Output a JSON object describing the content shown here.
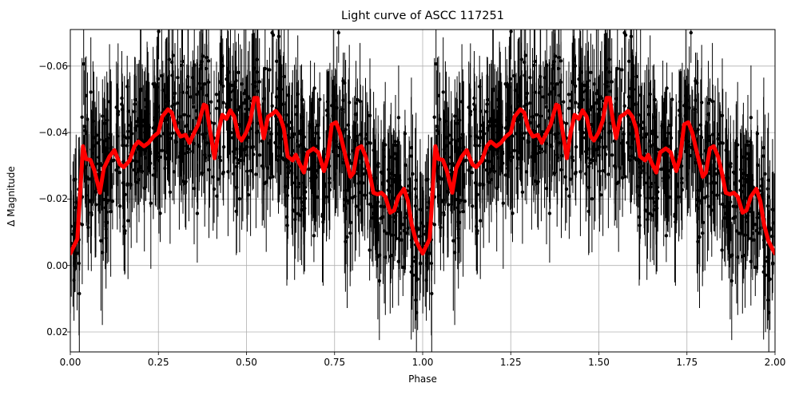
{
  "figure": {
    "title": "Light curve of ASCC 117251",
    "xlabel": "Phase",
    "ylabel": "Δ Magnitude",
    "colors": {
      "data_points": "#000000",
      "model_curve": "#ff0000",
      "grid": "#b0b0b0",
      "axes": "#000000"
    }
  },
  "chart_data": {
    "type": "scatter",
    "title": "Light curve of ASCC 117251",
    "xlabel": "Phase",
    "ylabel": "Δ Magnitude",
    "xlim": [
      0.0,
      2.0
    ],
    "ylim": [
      0.026,
      -0.071
    ],
    "y_inverted": true,
    "grid": true,
    "legend": null,
    "x_ticks": [
      0.0,
      0.25,
      0.5,
      0.75,
      1.0,
      1.25,
      1.5,
      1.75,
      2.0
    ],
    "x_tick_labels": [
      "0.00",
      "0.25",
      "0.50",
      "0.75",
      "1.00",
      "1.25",
      "1.50",
      "1.75",
      "2.00"
    ],
    "y_ticks": [
      -0.06,
      -0.04,
      -0.02,
      0.0,
      0.02
    ],
    "y_tick_labels": [
      "−0.06",
      "−0.04",
      "−0.02",
      "0.00",
      "0.02"
    ],
    "series": [
      {
        "name": "observations",
        "style": "black points with vertical error bars",
        "description": "dense phase-folded photometry repeated over two cycles; scatter roughly ±0.03 mag around the model with error bars ~0.01–0.02 mag",
        "approx_count": 1800
      },
      {
        "name": "model",
        "style": "thick red line",
        "period_repeat": 1.0,
        "phase": [
          0.0,
          0.02,
          0.036,
          0.045,
          0.057,
          0.068,
          0.084,
          0.095,
          0.111,
          0.125,
          0.141,
          0.152,
          0.168,
          0.182,
          0.193,
          0.209,
          0.222,
          0.236,
          0.25,
          0.261,
          0.277,
          0.288,
          0.3,
          0.313,
          0.327,
          0.338,
          0.352,
          0.363,
          0.379,
          0.386,
          0.395,
          0.409,
          0.42,
          0.431,
          0.443,
          0.454,
          0.465,
          0.477,
          0.486,
          0.499,
          0.511,
          0.522,
          0.531,
          0.54,
          0.549,
          0.561,
          0.572,
          0.583,
          0.595,
          0.606,
          0.617,
          0.631,
          0.64,
          0.652,
          0.663,
          0.674,
          0.69,
          0.704,
          0.72,
          0.731,
          0.742,
          0.754,
          0.765,
          0.781,
          0.795,
          0.804,
          0.815,
          0.826,
          0.838,
          0.849,
          0.86,
          0.872,
          0.883,
          0.894,
          0.908,
          0.919,
          0.931,
          0.947,
          0.958,
          0.969,
          0.981,
          0.992,
          1.0
        ],
        "delta_mag": [
          -0.0036,
          -0.008,
          -0.0359,
          -0.032,
          -0.0318,
          -0.0287,
          -0.0219,
          -0.0292,
          -0.0328,
          -0.0347,
          -0.0304,
          -0.0296,
          -0.0316,
          -0.0359,
          -0.0373,
          -0.0359,
          -0.0369,
          -0.0388,
          -0.04,
          -0.0448,
          -0.047,
          -0.046,
          -0.0412,
          -0.0388,
          -0.0393,
          -0.0369,
          -0.04,
          -0.0424,
          -0.0484,
          -0.048,
          -0.0417,
          -0.0323,
          -0.04,
          -0.0453,
          -0.0441,
          -0.0467,
          -0.0448,
          -0.0388,
          -0.0376,
          -0.04,
          -0.0436,
          -0.0504,
          -0.0504,
          -0.0436,
          -0.0383,
          -0.0448,
          -0.0455,
          -0.0465,
          -0.0448,
          -0.0412,
          -0.0328,
          -0.0316,
          -0.0333,
          -0.0304,
          -0.028,
          -0.034,
          -0.0352,
          -0.034,
          -0.0284,
          -0.0328,
          -0.0424,
          -0.0431,
          -0.04,
          -0.0328,
          -0.0267,
          -0.028,
          -0.0352,
          -0.0359,
          -0.0328,
          -0.028,
          -0.0219,
          -0.0214,
          -0.0219,
          -0.0207,
          -0.0159,
          -0.0166,
          -0.0207,
          -0.0231,
          -0.0195,
          -0.0123,
          -0.0075,
          -0.0051,
          -0.0036
        ]
      }
    ]
  }
}
